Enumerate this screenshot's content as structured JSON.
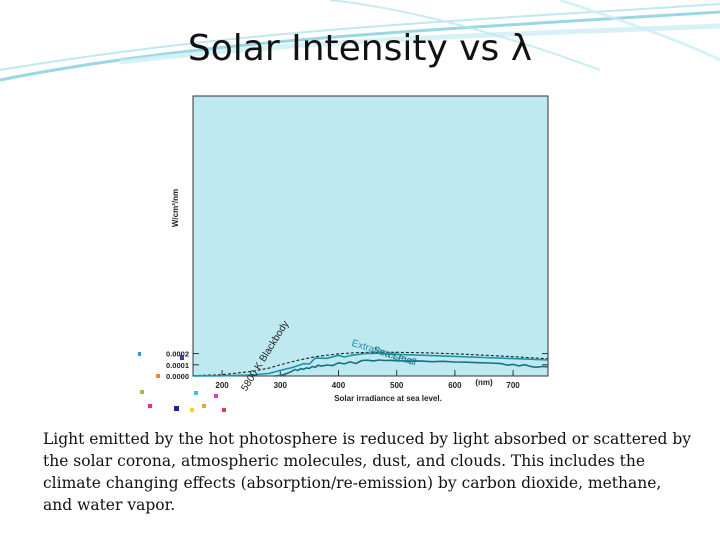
{
  "slide": {
    "title": "Solar Intensity vs λ",
    "caption": "Light emitted by the hot photosphere is reduced by light absorbed or scattered by the solar corona, atmospheric molecules, dust, and clouds.  This includes the climate changing effects (absorption/re-emission) by carbon dioxide, methane, and water vapor."
  },
  "colors": {
    "plot_background": "#bfe9f0",
    "curve": "#1a93ab",
    "sea_level_curve": "#1a6f80",
    "blackbody": "#222222",
    "swoosh": "#8fd3e2"
  },
  "chart_data": {
    "type": "line",
    "title": "",
    "xlabel": "Solar irradiance at sea level.",
    "ylabel": "W/cm²/nm",
    "xlim": [
      150,
      760
    ],
    "ylim": [
      0,
      0.0025
    ],
    "x_ticks": [
      {
        "value": 200,
        "label": "200"
      },
      {
        "value": 300,
        "label": "300"
      },
      {
        "value": 400,
        "label": "400"
      },
      {
        "value": 500,
        "label": "500"
      },
      {
        "value": 600,
        "label": "600"
      },
      {
        "value": 700,
        "label": "700"
      }
    ],
    "x_unit_label": {
      "value": 650,
      "label": "(nm)"
    },
    "y_ticks": [
      {
        "value": 0.0,
        "label": "0.0000"
      },
      {
        "value": 0.0001,
        "label": "0.0001"
      },
      {
        "value": 0.0002,
        "label": "0.0002"
      }
    ],
    "series": [
      {
        "name": "5800 K Blackbody",
        "style": "dashed",
        "x": [
          150,
          200,
          250,
          280,
          300,
          330,
          360,
          400,
          430,
          460,
          500,
          550,
          600,
          650,
          700,
          740,
          760
        ],
        "y": [
          3e-06,
          1.2e-05,
          4e-05,
          7e-05,
          0.0001,
          0.00014,
          0.000172,
          0.000198,
          0.000208,
          0.000212,
          0.000212,
          0.000207,
          0.000198,
          0.000186,
          0.000172,
          0.00016,
          0.000154
        ]
      },
      {
        "name": "Extraterrestrial",
        "style": "solid",
        "x": [
          150,
          200,
          240,
          260,
          280,
          300,
          320,
          340,
          350,
          360,
          380,
          400,
          410,
          420,
          440,
          450,
          460,
          470,
          480,
          500,
          530,
          560,
          600,
          650,
          700,
          740,
          760
        ],
        "y": [
          1e-06,
          2e-06,
          7e-06,
          1.3e-05,
          2.2e-05,
          5e-05,
          7.5e-05,
          0.00011,
          0.000107,
          0.00016,
          0.000158,
          0.000185,
          0.00017,
          0.000182,
          0.000197,
          0.000203,
          0.000201,
          0.000205,
          0.000198,
          0.000194,
          0.000188,
          0.000182,
          0.000175,
          0.000165,
          0.000155,
          0.000147,
          0.000143
        ]
      },
      {
        "name": "Sea Level",
        "style": "solid",
        "x": [
          290,
          295,
          300,
          305,
          310,
          315,
          320,
          325,
          330,
          335,
          340,
          345,
          350,
          355,
          360,
          365,
          370,
          375,
          380,
          390,
          400,
          410,
          420,
          430,
          440,
          450,
          460,
          470,
          480,
          490,
          500,
          520,
          540,
          560,
          580,
          600,
          620,
          640,
          660,
          680,
          690,
          700,
          710,
          720,
          730,
          740,
          750,
          760
        ],
        "y": [
          0.0,
          2e-06,
          5e-06,
          1.2e-05,
          2e-05,
          3e-05,
          4.2e-05,
          5.8e-05,
          5e-05,
          6.6e-05,
          6e-05,
          7.2e-05,
          6.8e-05,
          8.5e-05,
          7.8e-05,
          9.6e-05,
          8.8e-05,
          9.2e-05,
          9.8e-05,
          9.3e-05,
          0.000118,
          0.000108,
          0.000126,
          0.000112,
          0.000138,
          0.000141,
          0.000135,
          0.000143,
          0.000138,
          0.00014,
          0.000136,
          0.000133,
          0.000135,
          0.000128,
          0.000131,
          0.000125,
          0.000123,
          0.000119,
          0.000116,
          0.000111,
          9.7e-05,
          0.000104,
          9e-05,
          0.000101,
          8.6e-05,
          7.8e-05,
          8.5e-05,
          8.2e-05
        ]
      }
    ],
    "annotations": [
      {
        "text": "5800 K Blackbody",
        "for": "5800 K Blackbody"
      },
      {
        "text": "Extraterrestrial",
        "for": "Extraterrestrial"
      },
      {
        "text": "Sea Level",
        "for": "Sea Level"
      }
    ],
    "grid": false,
    "legend": "none"
  }
}
